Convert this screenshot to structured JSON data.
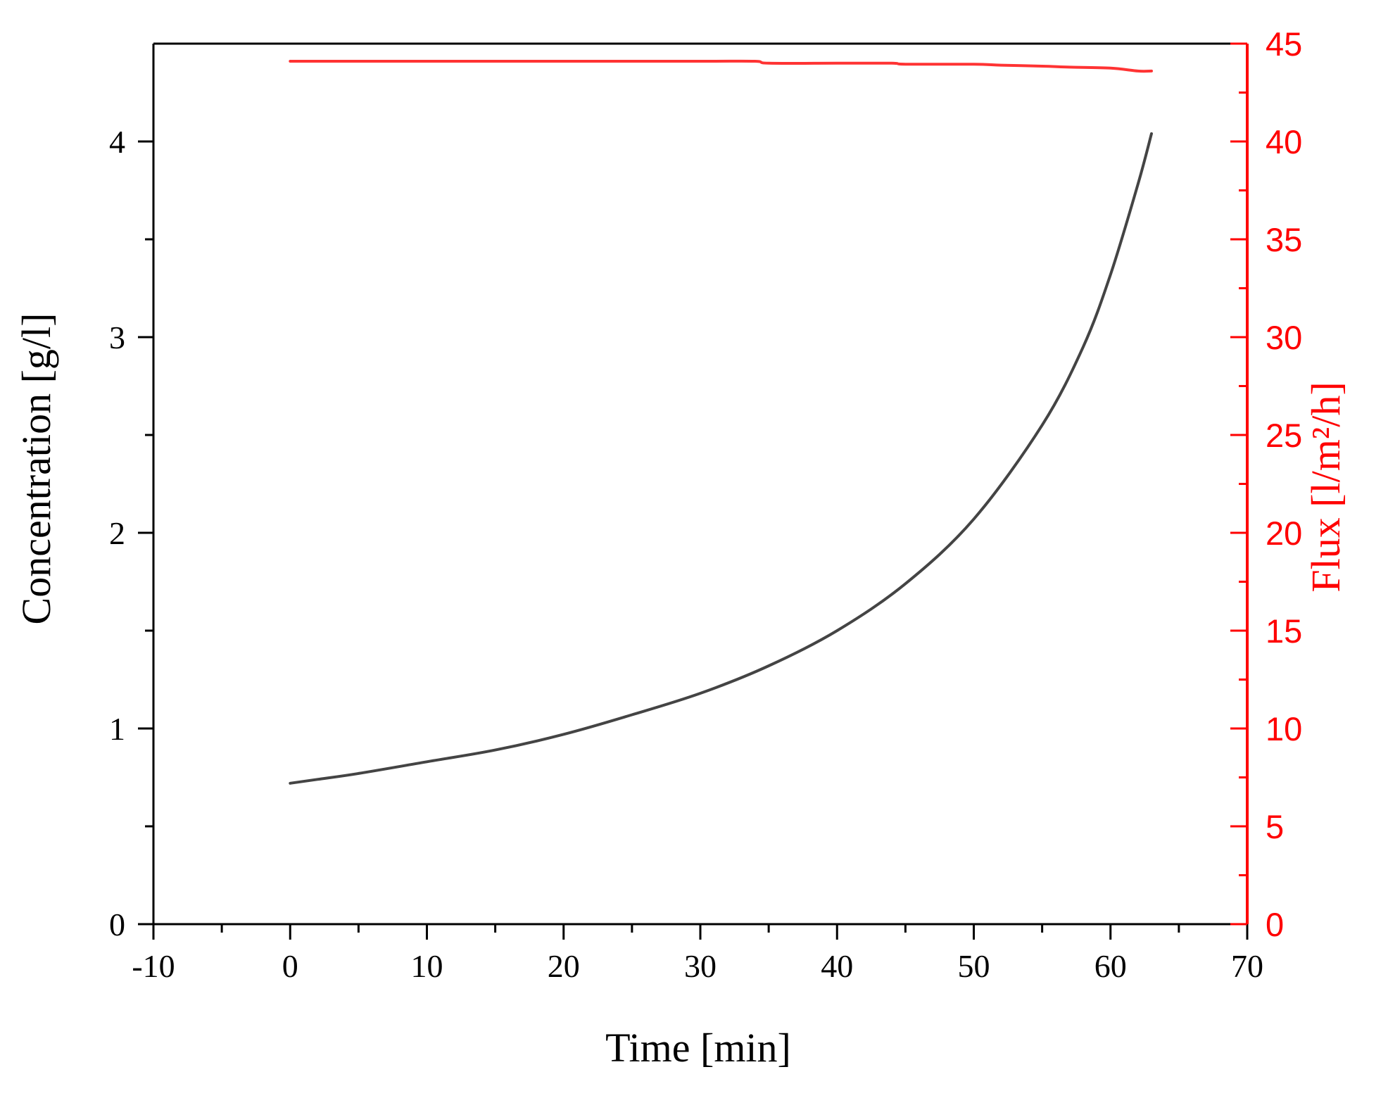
{
  "chart_data": {
    "type": "line",
    "xlabel": "Time [min]",
    "ylabel_left": "Concentration [g/l]",
    "ylabel_right": "Flux [l/m²/h]",
    "xlim": [
      -10,
      70
    ],
    "ylim_left": [
      0,
      4.5
    ],
    "ylim_right": [
      0,
      45
    ],
    "x_ticks": [
      "-10",
      "0",
      "10",
      "20",
      "30",
      "40",
      "50",
      "60",
      "70"
    ],
    "y_left_ticks": [
      "0",
      "1",
      "2",
      "3",
      "4"
    ],
    "y_right_ticks": [
      "0",
      "5",
      "10",
      "15",
      "20",
      "25",
      "30",
      "35",
      "40",
      "45"
    ],
    "grid": false,
    "legend": "none",
    "colors": {
      "concentration": "#444444",
      "flux": "#ff3333",
      "right_axis": "#ff0000",
      "left_axis": "#000000"
    },
    "series": [
      {
        "axis": "left",
        "x": [
          0,
          2,
          5,
          10,
          15,
          20,
          25,
          30,
          35,
          40,
          45,
          50,
          55,
          58,
          60,
          62,
          63
        ],
        "y": [
          0.72,
          0.74,
          0.77,
          0.83,
          0.89,
          0.97,
          1.07,
          1.18,
          1.32,
          1.5,
          1.74,
          2.07,
          2.55,
          2.95,
          3.32,
          3.78,
          4.04
        ]
      },
      {
        "axis": "right",
        "x": [
          0,
          10,
          20,
          30,
          34,
          35,
          40,
          44,
          45,
          50,
          52,
          55,
          57,
          60,
          62,
          63
        ],
        "y": [
          44.1,
          44.1,
          44.1,
          44.1,
          44.1,
          44.0,
          44.0,
          44.0,
          43.95,
          43.95,
          43.9,
          43.85,
          43.8,
          43.75,
          43.6,
          43.6
        ]
      }
    ]
  }
}
